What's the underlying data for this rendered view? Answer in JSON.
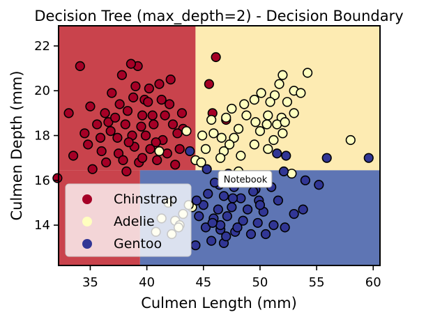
{
  "chart_data": {
    "type": "scatter",
    "title": "Decision Tree (max_depth=2) - Decision Boundary",
    "xlabel": "Culmen Length (mm)",
    "ylabel": "Culmen Depth (mm)",
    "xlim": [
      32.2,
      60.6
    ],
    "ylim": [
      12.2,
      22.9
    ],
    "xticks": [
      35,
      40,
      45,
      50,
      55,
      60
    ],
    "yticks": [
      14,
      16,
      18,
      20,
      22
    ],
    "regions": [
      {
        "class": "Chinstrap",
        "x_range": [
          32.2,
          44.3
        ],
        "y_range": [
          16.45,
          22.9
        ],
        "color": "#c9434c"
      },
      {
        "class": "Chinstrap",
        "x_range": [
          32.2,
          39.4
        ],
        "y_range": [
          12.2,
          16.45
        ],
        "color": "#c9434c"
      },
      {
        "class": "Adelie",
        "x_range": [
          44.3,
          60.6
        ],
        "y_range": [
          16.45,
          22.9
        ],
        "color": "#fdebb2"
      },
      {
        "class": "Gentoo",
        "x_range": [
          39.4,
          60.6
        ],
        "y_range": [
          12.2,
          16.45
        ],
        "color": "#5e75b4"
      }
    ],
    "legend": {
      "position": "lower-left",
      "entries": [
        {
          "label": "Chinstrap",
          "color": "#a50026"
        },
        {
          "label": "Adelie",
          "color": "#ffffbf"
        },
        {
          "label": "Gentoo",
          "color": "#313695"
        }
      ]
    },
    "series": [
      {
        "name": "Chinstrap",
        "color": "#a50026",
        "points": [
          [
            34.1,
            21.1
          ],
          [
            39.2,
            21.1
          ],
          [
            37.8,
            20.7
          ],
          [
            38.6,
            21.2
          ],
          [
            39.0,
            20.2
          ],
          [
            41.1,
            20.3
          ],
          [
            40.2,
            20.1
          ],
          [
            42.1,
            20.5
          ],
          [
            36.9,
            19.9
          ],
          [
            41.3,
            19.6
          ],
          [
            38.8,
            19.7
          ],
          [
            39.8,
            19.6
          ],
          [
            35.0,
            19.3
          ],
          [
            37.6,
            19.4
          ],
          [
            40.1,
            19.5
          ],
          [
            42.0,
            19.4
          ],
          [
            36.3,
            19.0
          ],
          [
            38.3,
            19.1
          ],
          [
            39.6,
            18.9
          ],
          [
            41.6,
            18.9
          ],
          [
            43.1,
            19.0
          ],
          [
            40.5,
            18.9
          ],
          [
            33.1,
            19.0
          ],
          [
            35.6,
            18.5
          ],
          [
            36.6,
            18.6
          ],
          [
            37.2,
            18.8
          ],
          [
            38.1,
            18.5
          ],
          [
            39.5,
            18.4
          ],
          [
            40.6,
            18.5
          ],
          [
            42.3,
            18.5
          ],
          [
            43.2,
            18.3
          ],
          [
            34.5,
            18.1
          ],
          [
            35.9,
            17.9
          ],
          [
            37.4,
            17.9
          ],
          [
            38.7,
            18.0
          ],
          [
            39.9,
            18.0
          ],
          [
            41.4,
            17.8
          ],
          [
            42.7,
            18.1
          ],
          [
            36.0,
            17.3
          ],
          [
            37.5,
            17.2
          ],
          [
            38.9,
            17.5
          ],
          [
            40.3,
            17.4
          ],
          [
            41.8,
            17.2
          ],
          [
            34.8,
            17.6
          ],
          [
            33.5,
            17.1
          ],
          [
            36.4,
            16.8
          ],
          [
            37.9,
            16.9
          ],
          [
            39.3,
            16.8
          ],
          [
            40.9,
            16.9
          ],
          [
            42.5,
            16.7
          ],
          [
            35.2,
            16.5
          ],
          [
            38.2,
            16.4
          ],
          [
            32.1,
            16.1
          ],
          [
            39.6,
            17.0
          ],
          [
            40.8,
            17.7
          ],
          [
            42.9,
            17.4
          ],
          [
            38.4,
            17.7
          ],
          [
            36.8,
            18.2
          ],
          [
            46.1,
            21.5
          ],
          [
            45.5,
            20.3
          ],
          [
            45.8,
            19.0
          ],
          [
            47.0,
            18.7
          ]
        ]
      },
      {
        "name": "Adelie",
        "color": "#ffffbf",
        "points": [
          [
            54.2,
            20.8
          ],
          [
            52.0,
            20.7
          ],
          [
            51.7,
            20.3
          ],
          [
            50.1,
            19.9
          ],
          [
            53.0,
            20.0
          ],
          [
            51.3,
            19.8
          ],
          [
            53.6,
            19.9
          ],
          [
            49.5,
            19.6
          ],
          [
            48.6,
            19.4
          ],
          [
            50.9,
            19.5
          ],
          [
            52.4,
            19.5
          ],
          [
            47.5,
            19.2
          ],
          [
            48.8,
            18.9
          ],
          [
            50.7,
            18.9
          ],
          [
            51.9,
            18.8
          ],
          [
            53.0,
            19.0
          ],
          [
            45.7,
            18.7
          ],
          [
            47.0,
            18.8
          ],
          [
            49.6,
            18.6
          ],
          [
            50.6,
            18.5
          ],
          [
            51.5,
            18.5
          ],
          [
            52.2,
            18.6
          ],
          [
            48.1,
            18.3
          ],
          [
            50.0,
            18.2
          ],
          [
            52.0,
            18.1
          ],
          [
            46.6,
            17.9
          ],
          [
            47.7,
            17.9
          ],
          [
            49.5,
            17.6
          ],
          [
            50.7,
            17.4
          ],
          [
            51.2,
            17.8
          ],
          [
            58.0,
            17.8
          ],
          [
            45.2,
            17.4
          ],
          [
            46.8,
            17.3
          ],
          [
            48.3,
            17.1
          ],
          [
            46.5,
            17.0
          ],
          [
            44.3,
            16.9
          ],
          [
            43.5,
            18.2
          ],
          [
            41.1,
            17.3
          ],
          [
            44.9,
            18.0
          ],
          [
            45.9,
            18.1
          ],
          [
            47.3,
            17.6
          ],
          [
            44.8,
            16.8
          ],
          [
            44.0,
            14.8
          ],
          [
            43.7,
            14.9
          ],
          [
            43.2,
            14.5
          ],
          [
            42.5,
            14.2
          ],
          [
            41.9,
            15.0
          ],
          [
            42.9,
            14.0
          ],
          [
            41.3,
            14.3
          ],
          [
            42.8,
            13.9
          ],
          [
            40.8,
            13.7
          ],
          [
            42.2,
            13.6
          ],
          [
            48.1,
            16.4
          ],
          [
            52.8,
            16.3
          ]
        ]
      },
      {
        "name": "Gentoo",
        "color": "#313695",
        "points": [
          [
            43.8,
            17.3
          ],
          [
            51.5,
            17.2
          ],
          [
            52.3,
            17.1
          ],
          [
            55.9,
            17.0
          ],
          [
            59.6,
            17.0
          ],
          [
            54.0,
            16.0
          ],
          [
            52.1,
            16.4
          ],
          [
            49.1,
            16.2
          ],
          [
            47.2,
            16.3
          ],
          [
            48.7,
            16.1
          ],
          [
            50.2,
            16.0
          ],
          [
            46.4,
            15.8
          ],
          [
            47.7,
            15.7
          ],
          [
            49.6,
            15.6
          ],
          [
            51.0,
            15.7
          ],
          [
            45.4,
            15.4
          ],
          [
            46.8,
            15.3
          ],
          [
            48.3,
            15.2
          ],
          [
            49.9,
            15.1
          ],
          [
            51.6,
            15.1
          ],
          [
            45.0,
            14.9
          ],
          [
            46.3,
            14.7
          ],
          [
            47.5,
            14.8
          ],
          [
            48.9,
            14.7
          ],
          [
            50.3,
            14.6
          ],
          [
            44.6,
            14.4
          ],
          [
            45.9,
            14.3
          ],
          [
            47.1,
            14.4
          ],
          [
            48.5,
            14.2
          ],
          [
            49.8,
            14.1
          ],
          [
            51.2,
            14.0
          ],
          [
            45.2,
            13.9
          ],
          [
            46.5,
            13.8
          ],
          [
            47.8,
            13.7
          ],
          [
            49.2,
            13.6
          ],
          [
            50.5,
            13.6
          ],
          [
            45.7,
            13.3
          ],
          [
            46.8,
            13.2
          ],
          [
            44.3,
            13.1
          ],
          [
            53.0,
            14.5
          ],
          [
            55.2,
            15.8
          ],
          [
            53.8,
            14.7
          ],
          [
            52.2,
            13.9
          ],
          [
            46.0,
            15.9
          ],
          [
            45.3,
            16.5
          ],
          [
            44.4,
            15.1
          ],
          [
            46.5,
            14.0
          ],
          [
            47.6,
            15.2
          ],
          [
            48.0,
            13.9
          ],
          [
            49.4,
            15.5
          ],
          [
            50.0,
            14.9
          ],
          [
            45.8,
            14.1
          ],
          [
            47.0,
            13.5
          ]
        ]
      }
    ]
  },
  "tooltip": {
    "label": "Notebook"
  }
}
